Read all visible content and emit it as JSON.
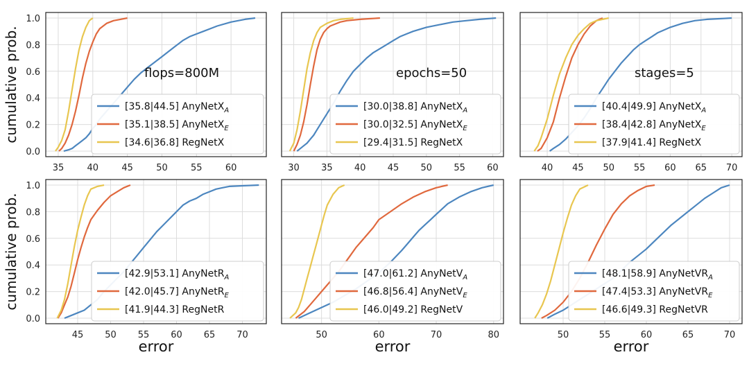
{
  "ylabel": "cumulative prob.",
  "xlabel": "error",
  "colors": {
    "A": "#4c86bf",
    "E": "#e0683d",
    "R": "#e8c64f",
    "grid": "#dcdcdc",
    "frame": "#222222"
  },
  "yticks": [
    "0.0",
    "0.2",
    "0.4",
    "0.6",
    "0.8",
    "1.0"
  ],
  "chart_data": [
    {
      "type": "line",
      "annotation": "flops=800M",
      "xlim": [
        34,
        64.5
      ],
      "ylim": [
        0,
        1
      ],
      "xticks": [
        35,
        40,
        45,
        50,
        55,
        60
      ],
      "series": [
        {
          "name": "[35.8|44.5] AnyNetX",
          "sub": "A",
          "key": "A",
          "x": [
            35.8,
            36.5,
            37,
            37.5,
            38,
            38.5,
            39,
            39.5,
            40,
            40.5,
            41,
            42,
            43,
            44,
            45,
            46,
            47,
            48,
            49,
            50,
            51,
            52,
            53,
            54,
            55,
            56,
            57,
            58,
            60,
            62,
            63.5
          ],
          "y": [
            0,
            0.01,
            0.02,
            0.04,
            0.06,
            0.08,
            0.1,
            0.13,
            0.17,
            0.2,
            0.24,
            0.3,
            0.36,
            0.42,
            0.48,
            0.54,
            0.59,
            0.63,
            0.67,
            0.71,
            0.75,
            0.79,
            0.83,
            0.86,
            0.88,
            0.9,
            0.92,
            0.94,
            0.97,
            0.99,
            1.0
          ]
        },
        {
          "name": "[35.1|38.5] AnyNetX",
          "sub": "E",
          "key": "E",
          "x": [
            35.1,
            35.5,
            36,
            36.5,
            37,
            37.5,
            38,
            38.5,
            39,
            39.5,
            40,
            40.5,
            41,
            42,
            43,
            44,
            45
          ],
          "y": [
            0,
            0.02,
            0.06,
            0.12,
            0.2,
            0.3,
            0.42,
            0.55,
            0.66,
            0.75,
            0.82,
            0.88,
            0.92,
            0.96,
            0.98,
            0.99,
            1.0
          ]
        },
        {
          "name": "[34.6|36.8] RegNetX",
          "sub": "",
          "key": "R",
          "x": [
            34.6,
            35,
            35.5,
            36,
            36.5,
            37,
            37.5,
            38,
            38.5,
            39,
            39.5,
            40
          ],
          "y": [
            0,
            0.03,
            0.08,
            0.16,
            0.3,
            0.46,
            0.62,
            0.76,
            0.86,
            0.93,
            0.98,
            1.0
          ]
        }
      ]
    },
    {
      "type": "line",
      "annotation": "epochs=50",
      "xlim": [
        29,
        61
      ],
      "ylim": [
        0,
        1
      ],
      "xticks": [
        30,
        35,
        40,
        45,
        50,
        55,
        60
      ],
      "series": [
        {
          "name": "[30.0|38.8] AnyNetX",
          "sub": "A",
          "key": "A",
          "x": [
            30.5,
            31,
            31.5,
            32,
            32.5,
            33,
            33.5,
            34,
            35,
            36,
            37,
            38,
            39,
            40,
            41,
            42,
            43,
            44,
            45,
            46,
            47,
            48,
            50,
            52,
            54,
            56,
            58,
            60.5
          ],
          "y": [
            0,
            0.02,
            0.04,
            0.06,
            0.09,
            0.12,
            0.16,
            0.2,
            0.28,
            0.36,
            0.45,
            0.53,
            0.6,
            0.65,
            0.7,
            0.74,
            0.77,
            0.8,
            0.83,
            0.86,
            0.88,
            0.9,
            0.93,
            0.95,
            0.97,
            0.98,
            0.99,
            1.0
          ]
        },
        {
          "name": "[30.0|32.5] AnyNetX",
          "sub": "E",
          "key": "E",
          "x": [
            30,
            30.5,
            31,
            31.5,
            32,
            32.5,
            33,
            33.5,
            34,
            34.5,
            35,
            35.5,
            36,
            37,
            38,
            40,
            43
          ],
          "y": [
            0,
            0.05,
            0.12,
            0.22,
            0.35,
            0.5,
            0.64,
            0.76,
            0.84,
            0.89,
            0.92,
            0.94,
            0.95,
            0.97,
            0.98,
            0.99,
            1.0
          ]
        },
        {
          "name": "[29.4|31.5] RegNetX",
          "sub": "",
          "key": "R",
          "x": [
            29.4,
            30,
            30.5,
            31,
            31.5,
            32,
            32.5,
            33,
            33.5,
            34,
            35,
            36,
            37,
            38,
            39
          ],
          "y": [
            0,
            0.06,
            0.16,
            0.3,
            0.46,
            0.62,
            0.74,
            0.83,
            0.89,
            0.93,
            0.96,
            0.98,
            0.99,
            0.995,
            1.0
          ]
        }
      ]
    },
    {
      "type": "line",
      "annotation": "stages=5",
      "xlim": [
        36.5,
        71
      ],
      "ylim": [
        0,
        1
      ],
      "xticks": [
        40,
        45,
        50,
        55,
        60,
        65,
        70
      ],
      "series": [
        {
          "name": "[40.4|49.9] AnyNetX",
          "sub": "A",
          "key": "A",
          "x": [
            40.4,
            41,
            42,
            43,
            44,
            45,
            46,
            47,
            48,
            49,
            50,
            51,
            52,
            53,
            54,
            55,
            56,
            57,
            58,
            59,
            60,
            62,
            64,
            66,
            68,
            70
          ],
          "y": [
            0,
            0.02,
            0.05,
            0.09,
            0.14,
            0.19,
            0.25,
            0.32,
            0.4,
            0.47,
            0.54,
            0.6,
            0.66,
            0.71,
            0.76,
            0.8,
            0.83,
            0.86,
            0.89,
            0.91,
            0.93,
            0.96,
            0.98,
            0.99,
            0.995,
            1.0
          ]
        },
        {
          "name": "[38.4|42.8] AnyNetX",
          "sub": "E",
          "key": "E",
          "x": [
            38.4,
            39,
            40,
            41,
            42,
            43,
            44,
            45,
            46,
            47,
            48,
            49
          ],
          "y": [
            0,
            0.02,
            0.1,
            0.22,
            0.4,
            0.56,
            0.7,
            0.8,
            0.88,
            0.94,
            0.98,
            1.0
          ]
        },
        {
          "name": "[37.9|41.4] RegNetX",
          "sub": "",
          "key": "R",
          "x": [
            37.9,
            38.5,
            39,
            40,
            41,
            42,
            43,
            44,
            45,
            46,
            47,
            48,
            50
          ],
          "y": [
            0,
            0.04,
            0.1,
            0.24,
            0.42,
            0.58,
            0.7,
            0.8,
            0.87,
            0.92,
            0.96,
            0.98,
            1.0
          ]
        }
      ]
    },
    {
      "type": "line",
      "annotation": "",
      "xlim": [
        41,
        73
      ],
      "ylim": [
        0,
        1
      ],
      "xticks": [
        45,
        50,
        55,
        60,
        65,
        70
      ],
      "series": [
        {
          "name": "[42.9|53.1] AnyNetR",
          "sub": "A",
          "key": "A",
          "x": [
            43,
            44,
            45,
            46,
            47,
            48,
            49,
            50,
            51,
            52,
            53,
            54,
            55,
            56,
            57,
            58,
            59,
            60,
            61,
            62,
            63,
            64,
            65,
            66,
            67,
            68,
            70,
            72.5
          ],
          "y": [
            0,
            0.02,
            0.04,
            0.06,
            0.1,
            0.14,
            0.2,
            0.25,
            0.3,
            0.35,
            0.41,
            0.47,
            0.53,
            0.59,
            0.65,
            0.7,
            0.75,
            0.8,
            0.85,
            0.88,
            0.9,
            0.93,
            0.95,
            0.97,
            0.98,
            0.99,
            0.995,
            1.0
          ]
        },
        {
          "name": "[42.0|45.7] AnyNetR",
          "sub": "E",
          "key": "E",
          "x": [
            42,
            42.5,
            43,
            43.5,
            44,
            44.5,
            45,
            45.5,
            46,
            46.5,
            47,
            48,
            49,
            50,
            51,
            52,
            53
          ],
          "y": [
            0,
            0.04,
            0.1,
            0.16,
            0.24,
            0.34,
            0.44,
            0.53,
            0.61,
            0.68,
            0.74,
            0.81,
            0.87,
            0.92,
            0.95,
            0.98,
            1.0
          ]
        },
        {
          "name": "[41.9|44.3] RegNetR",
          "sub": "",
          "key": "R",
          "x": [
            41.9,
            42.5,
            43,
            43.5,
            44,
            44.5,
            45,
            45.5,
            46,
            46.5,
            47,
            48,
            49
          ],
          "y": [
            0,
            0.06,
            0.14,
            0.26,
            0.4,
            0.54,
            0.66,
            0.76,
            0.85,
            0.92,
            0.97,
            0.99,
            1.0
          ]
        }
      ]
    },
    {
      "type": "line",
      "annotation": "",
      "xlim": [
        44,
        81
      ],
      "ylim": [
        0,
        1
      ],
      "xticks": [
        50,
        60,
        70,
        80
      ],
      "series": [
        {
          "name": "[47.0|61.2] AnyNetV",
          "sub": "A",
          "key": "A",
          "x": [
            46,
            48,
            50,
            52,
            54,
            56,
            58,
            60,
            62,
            64,
            65,
            66,
            67,
            68,
            69,
            70,
            71,
            72,
            74,
            76,
            78,
            80
          ],
          "y": [
            0,
            0.04,
            0.08,
            0.12,
            0.17,
            0.22,
            0.28,
            0.34,
            0.42,
            0.51,
            0.56,
            0.61,
            0.66,
            0.7,
            0.74,
            0.78,
            0.82,
            0.86,
            0.91,
            0.95,
            0.98,
            1.0
          ]
        },
        {
          "name": "[46.8|56.4] AnyNetV",
          "sub": "E",
          "key": "E",
          "x": [
            45.5,
            47,
            48,
            49,
            50,
            51,
            52,
            53,
            54,
            55,
            56,
            57,
            58,
            59,
            60,
            62,
            64,
            66,
            68,
            70,
            72
          ],
          "y": [
            0,
            0.05,
            0.1,
            0.15,
            0.2,
            0.25,
            0.3,
            0.35,
            0.41,
            0.47,
            0.53,
            0.58,
            0.63,
            0.68,
            0.74,
            0.8,
            0.86,
            0.91,
            0.95,
            0.98,
            1.0
          ]
        },
        {
          "name": "[46.0|49.2] RegNetV",
          "sub": "",
          "key": "R",
          "x": [
            44.5,
            45.5,
            46,
            46.5,
            47,
            47.5,
            48,
            48.5,
            49,
            49.5,
            50,
            50.5,
            51,
            52,
            53,
            54
          ],
          "y": [
            0,
            0.04,
            0.08,
            0.14,
            0.22,
            0.3,
            0.38,
            0.46,
            0.54,
            0.62,
            0.7,
            0.78,
            0.85,
            0.93,
            0.98,
            1.0
          ]
        }
      ]
    },
    {
      "type": "line",
      "annotation": "",
      "xlim": [
        45.5,
        71
      ],
      "ylim": [
        0,
        1
      ],
      "xticks": [
        50,
        55,
        60,
        65,
        70
      ],
      "series": [
        {
          "name": "[48.1|58.9] AnyNetVR",
          "sub": "A",
          "key": "A",
          "x": [
            48.1,
            49,
            50,
            51,
            52,
            53,
            54,
            55,
            56,
            57,
            58,
            59,
            60,
            61,
            62,
            63,
            64,
            65,
            66,
            67,
            68,
            69,
            70
          ],
          "y": [
            0,
            0.03,
            0.06,
            0.1,
            0.14,
            0.18,
            0.22,
            0.26,
            0.3,
            0.36,
            0.42,
            0.47,
            0.52,
            0.58,
            0.64,
            0.7,
            0.75,
            0.8,
            0.85,
            0.9,
            0.94,
            0.98,
            1.0
          ]
        },
        {
          "name": "[47.4|53.3] AnyNetVR",
          "sub": "E",
          "key": "E",
          "x": [
            47.4,
            48,
            49,
            50,
            51,
            52,
            53,
            54,
            55,
            56,
            57,
            58,
            59,
            60,
            61
          ],
          "y": [
            0,
            0.02,
            0.06,
            0.12,
            0.2,
            0.3,
            0.42,
            0.55,
            0.67,
            0.78,
            0.86,
            0.92,
            0.96,
            0.99,
            1.0
          ]
        },
        {
          "name": "[46.6|49.3] RegNetVR",
          "sub": "",
          "key": "R",
          "x": [
            46.6,
            47,
            47.5,
            48,
            48.5,
            49,
            49.5,
            50,
            50.5,
            51,
            51.5,
            52,
            53
          ],
          "y": [
            0,
            0.04,
            0.1,
            0.18,
            0.28,
            0.4,
            0.52,
            0.64,
            0.75,
            0.85,
            0.92,
            0.97,
            1.0
          ]
        }
      ]
    }
  ]
}
